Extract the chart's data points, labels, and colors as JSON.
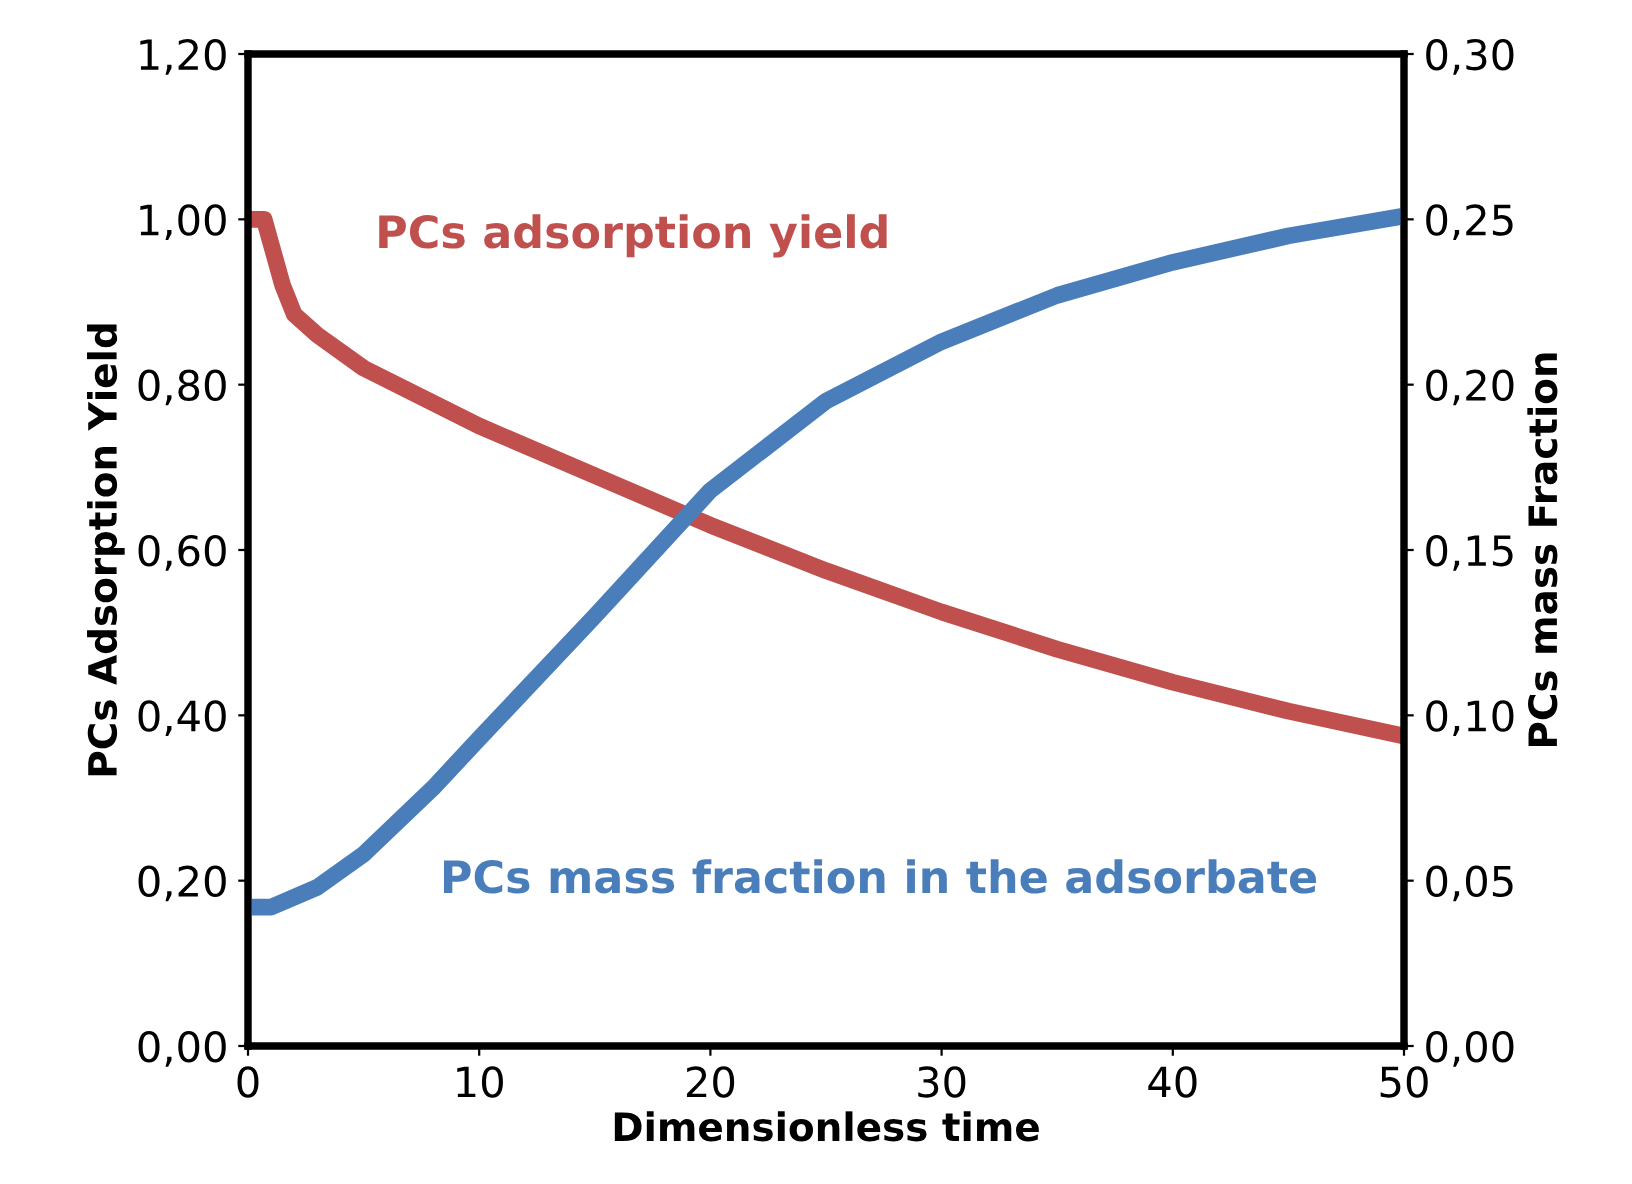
{
  "chart_data": {
    "type": "line",
    "xlabel": "Dimensionless time",
    "ylabel": "PCs Adsorption Yield",
    "y2label": "PCs mass Fraction",
    "xlim": [
      0,
      50
    ],
    "xticks": [
      0,
      10,
      20,
      30,
      40,
      50
    ],
    "ylim": [
      0,
      1.2
    ],
    "yticks": [
      {
        "value": 0,
        "label": "0,00"
      },
      {
        "value": 0.2,
        "label": "0,20"
      },
      {
        "value": 0.4,
        "label": "0,40"
      },
      {
        "value": 0.6,
        "label": "0,60"
      },
      {
        "value": 0.8,
        "label": "0,80"
      },
      {
        "value": 1.0,
        "label": "1,00"
      },
      {
        "value": 1.2,
        "label": "1,20"
      }
    ],
    "y2lim": [
      0,
      0.3
    ],
    "y2ticks": [
      {
        "value": 0,
        "label": "0,00"
      },
      {
        "value": 0.05,
        "label": "0,05"
      },
      {
        "value": 0.1,
        "label": "0,10"
      },
      {
        "value": 0.15,
        "label": "0,15"
      },
      {
        "value": 0.2,
        "label": "0,20"
      },
      {
        "value": 0.25,
        "label": "0,25"
      },
      {
        "value": 0.3,
        "label": "0,30"
      }
    ],
    "grid": false,
    "legend": false,
    "marker": "none",
    "line_style": "solid",
    "series": [
      {
        "name": "PCs adsorption yield",
        "color": "#c0504d",
        "x": [
          0,
          0.7,
          1,
          1.5,
          2,
          3,
          5,
          10,
          15,
          20,
          25,
          30,
          35,
          40,
          45,
          50
        ],
        "values": [
          1.0,
          1.0,
          0.97,
          0.92,
          0.885,
          0.86,
          0.82,
          0.75,
          0.69,
          0.63,
          0.575,
          0.525,
          0.48,
          0.44,
          0.405,
          0.375
        ]
      },
      {
        "name": "PCs mass fraction in the adsorbate",
        "color": "#4a7ebb",
        "axis": "y2",
        "x": [
          0,
          1,
          3,
          5,
          8,
          10,
          15,
          20,
          25,
          30,
          35,
          40,
          45,
          50
        ],
        "values": [
          0.042,
          0.042,
          0.048,
          0.058,
          0.078,
          0.093,
          0.13,
          0.168,
          0.195,
          0.213,
          0.227,
          0.237,
          0.245,
          0.251
        ]
      }
    ]
  }
}
